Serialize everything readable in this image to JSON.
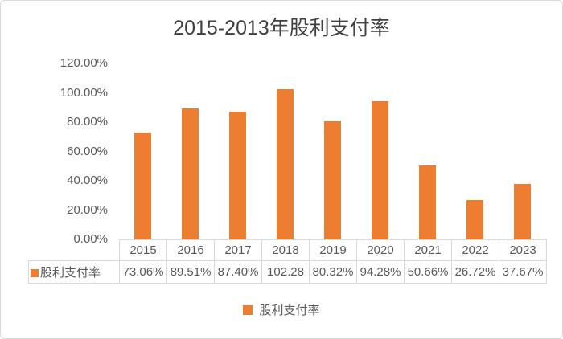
{
  "chart_data": {
    "type": "bar",
    "title": "2015-2013年股利支付率",
    "categories": [
      "2015",
      "2016",
      "2017",
      "2018",
      "2019",
      "2020",
      "2021",
      "2022",
      "2023"
    ],
    "series": [
      {
        "name": "股利支付率",
        "values": [
          73.06,
          89.51,
          87.4,
          102.28,
          80.32,
          94.28,
          50.66,
          26.72,
          37.67
        ]
      }
    ],
    "table_value_labels": [
      "73.06%",
      "89.51%",
      "87.40%",
      "102.28",
      "80.32%",
      "94.28%",
      "50.66%",
      "26.72%",
      "37.67%"
    ],
    "y_ticks": [
      {
        "value": 120,
        "label": "120.00%"
      },
      {
        "value": 100,
        "label": "100.00%"
      },
      {
        "value": 80,
        "label": "80.00%"
      },
      {
        "value": 60,
        "label": "60.00%"
      },
      {
        "value": 40,
        "label": "40.00%"
      },
      {
        "value": 20,
        "label": "20.00%"
      },
      {
        "value": 0,
        "label": "0.00%"
      }
    ],
    "ylim": [
      0,
      120
    ],
    "grid": false,
    "data_table_shown": true,
    "legend": {
      "label": "股利支付率",
      "position": "bottom"
    }
  },
  "colors": {
    "bar": "#ED7D31",
    "title_text": "#404040",
    "axis_text": "#595959",
    "table_border": "#D9D9D9",
    "chart_border": "#D7D7D7",
    "background": "#FFFFFF"
  }
}
